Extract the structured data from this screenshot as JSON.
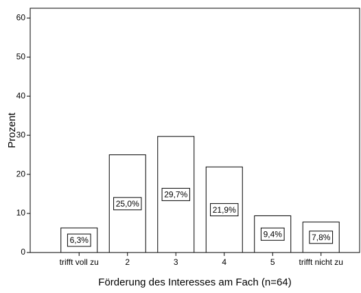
{
  "chart_data": {
    "type": "bar",
    "x_label": "Förderung des Interesses am Fach (n=64)",
    "y_label": "Prozent",
    "categories": [
      "trifft voll zu",
      "2",
      "3",
      "4",
      "5",
      "trifft nicht zu"
    ],
    "values": [
      6.3,
      25.0,
      29.7,
      21.9,
      9.4,
      7.8
    ],
    "value_labels": [
      "6,3%",
      "25,0%",
      "29,7%",
      "21,9%",
      "9,4%",
      "7,8%"
    ],
    "color": "#ffffff",
    "ylim": [
      0,
      62.5
    ],
    "yticks": [
      0,
      10,
      20,
      30,
      40,
      50,
      60
    ],
    "grid": false
  }
}
